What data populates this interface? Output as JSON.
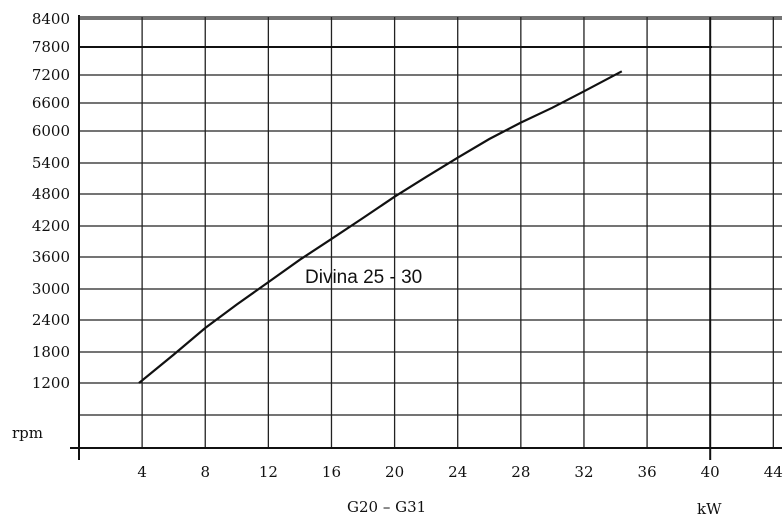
{
  "chart_data": {
    "type": "line",
    "title": "",
    "xlabel": "G20  –  G31",
    "xunit": "kW",
    "ylabel": "rpm",
    "x_ticks": [
      "4",
      "8",
      "12",
      "16",
      "20",
      "24",
      "28",
      "32",
      "36",
      "40",
      "44"
    ],
    "y_ticks": [
      "1200",
      "1800",
      "2400",
      "3000",
      "3600",
      "4200",
      "4800",
      "5400",
      "6000",
      "6600",
      "7200",
      "7800",
      "8400"
    ],
    "xlim": [
      0,
      44
    ],
    "ylim": [
      0,
      8400
    ],
    "grid": true,
    "series": [
      {
        "name": "Divina 25 - 30",
        "x": [
          3.8,
          6,
          8,
          10,
          12,
          14,
          16,
          18,
          20,
          22,
          24,
          26,
          28,
          30,
          32,
          34.4
        ],
        "y": [
          1200,
          1750,
          2250,
          2700,
          3130,
          3550,
          3950,
          4350,
          4750,
          5130,
          5500,
          5850,
          6180,
          6500,
          6850,
          7280
        ]
      }
    ]
  }
}
